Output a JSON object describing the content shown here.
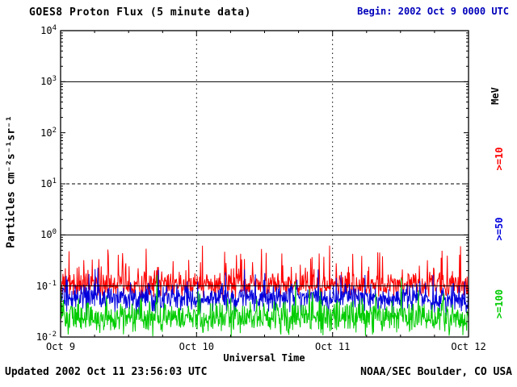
{
  "header": {
    "title": "GOES8 Proton Flux (5 minute data)",
    "begin_label": "Begin: 2002 Oct 9 0000 UTC",
    "begin_color": "#0000bb"
  },
  "footer": {
    "updated": "Updated 2002 Oct 11 23:56:03 UTC",
    "source": "NOAA/SEC Boulder, CO USA"
  },
  "chart_data": {
    "type": "line",
    "title": "GOES8 Proton Flux (5 minute data)",
    "xlabel": "Universal Time",
    "ylabel": "Particles cm⁻²s⁻¹sr⁻¹",
    "right_axis_title": "MeV",
    "x_ticks": [
      "Oct 9",
      "Oct 10",
      "Oct 11",
      "Oct 12"
    ],
    "x_span_days": 3,
    "y_scale": "log10",
    "ylim_log": [
      -2,
      4
    ],
    "y_tick_exponents": [
      4,
      3,
      2,
      1,
      0,
      -1,
      -2
    ],
    "grid": {
      "h_solid_exp": [
        3,
        0,
        -1
      ],
      "h_dashed_exp": [
        1
      ],
      "v_dashed_at_day_ticks": [
        1,
        2
      ]
    },
    "axis_color": "#000000",
    "legend_position": "right",
    "series": [
      {
        "name": ">=10 MeV",
        "label": ">=10",
        "color": "#ff0000",
        "log_mean": -0.98,
        "log_jitter": 0.12,
        "spike_prob": 0.12,
        "spike_amp": 0.65,
        "approx_min": 0.06,
        "approx_max": 0.5,
        "points": 864
      },
      {
        "name": ">=50 MeV",
        "label": ">=50",
        "color": "#0000dd",
        "log_mean": -1.25,
        "log_jitter": 0.12,
        "spike_prob": 0.1,
        "spike_amp": 0.4,
        "approx_min": 0.02,
        "approx_max": 0.15,
        "points": 864
      },
      {
        "name": ">=100 MeV",
        "label": ">=100",
        "color": "#00cc00",
        "log_mean": -1.62,
        "log_jitter": 0.15,
        "spike_prob": 0.1,
        "spike_amp": 0.45,
        "approx_min": 0.01,
        "approx_max": 0.08,
        "points": 864
      }
    ]
  }
}
